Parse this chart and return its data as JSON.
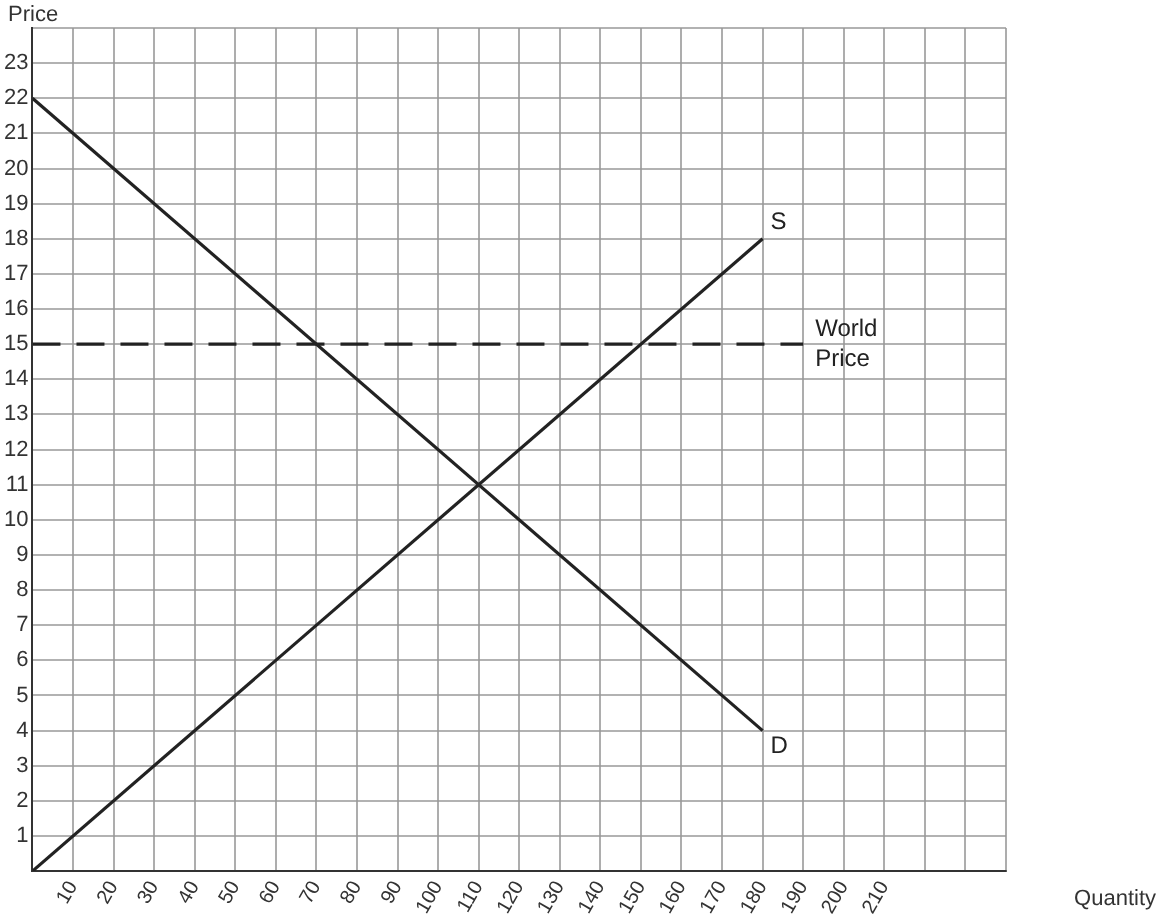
{
  "chart_data": {
    "type": "line",
    "xlabel": "Quantity",
    "ylabel": "Price",
    "xlim": [
      0,
      240
    ],
    "xticks": [
      {
        "value": 0,
        "label": null
      },
      10,
      20,
      30,
      40,
      50,
      60,
      70,
      80,
      90,
      100,
      110,
      120,
      130,
      140,
      150,
      160,
      170,
      180,
      190,
      200,
      210,
      {
        "value": 220,
        "label": null
      },
      {
        "value": 230,
        "label": null
      },
      {
        "value": 240,
        "label": null
      }
    ],
    "ylim": [
      0,
      24
    ],
    "yticks": [
      {
        "value": 0,
        "label": null
      },
      1,
      2,
      3,
      4,
      5,
      6,
      7,
      8,
      9,
      10,
      11,
      12,
      13,
      14,
      15,
      16,
      17,
      18,
      19,
      20,
      21,
      22,
      23,
      {
        "value": 24,
        "label": null
      }
    ],
    "grid": true,
    "legend": false,
    "marker": "none",
    "series": [
      {
        "name": "D",
        "color": "#222222",
        "x": [
          0,
          180
        ],
        "values": [
          22,
          4
        ],
        "line_style": "solid"
      },
      {
        "name": "S",
        "color": "#222222",
        "x": [
          0,
          180
        ],
        "values": [
          0,
          18
        ],
        "line_style": "solid"
      },
      {
        "name": "World Price",
        "color": "#222222",
        "x": [
          0,
          190
        ],
        "values": [
          15,
          15
        ],
        "line_style": "dashed"
      }
    ]
  }
}
